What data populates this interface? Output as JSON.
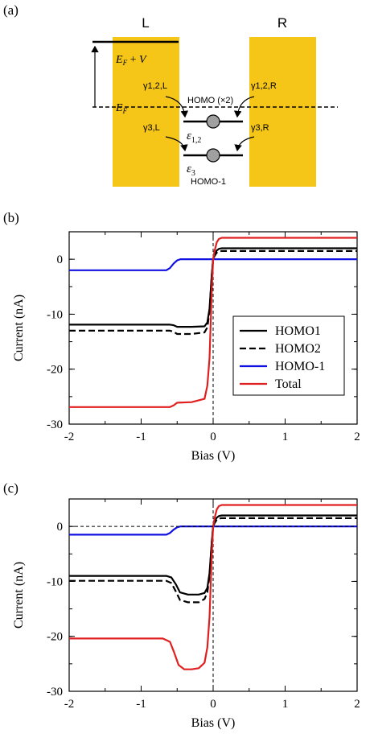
{
  "panel_a": {
    "label": "(a)",
    "left_label": "L",
    "right_label": "R",
    "ef_v": "E_F + V",
    "ef": "E_F",
    "gamma12_l": "γ1,2,L",
    "gamma12_r": "γ1,2,R",
    "gamma3_l": "γ3,L",
    "gamma3_r": "γ3,R",
    "homo_label": "HOMO (×2)",
    "eps12": "ε_{1,2}",
    "eps3": "ε_3",
    "homo_minus_1": "HOMO-1",
    "colors": {
      "electrode": "#F5C518",
      "level": "#000000",
      "dot": "#A0A0A0"
    }
  },
  "chart_data": [
    {
      "panel": "(b)",
      "type": "line",
      "xlabel": "Bias (V)",
      "ylabel": "Current (nA)",
      "xlim": [
        -2,
        2
      ],
      "ylim": [
        -30,
        5
      ],
      "xticks": [
        -2,
        -1,
        0,
        1,
        2
      ],
      "yticks": [
        0,
        -10,
        -20,
        -30
      ],
      "legend": "center-right",
      "series": [
        {
          "name": "HOMO1",
          "color": "#000000",
          "dash": "solid",
          "x": [
            -2,
            -0.6,
            -0.55,
            -0.5,
            -0.3,
            -0.12,
            -0.08,
            -0.05,
            -0.02,
            0,
            0.02,
            0.05,
            0.08,
            0.12,
            2
          ],
          "y": [
            -11.9,
            -11.9,
            -12.0,
            -12.3,
            -12.3,
            -12.2,
            -11.5,
            -9.0,
            -3.0,
            0,
            0.8,
            1.6,
            1.9,
            2.0,
            2.0
          ]
        },
        {
          "name": "HOMO2",
          "color": "#000000",
          "dash": "dashed",
          "x": [
            -2,
            -0.6,
            -0.55,
            -0.5,
            -0.3,
            -0.12,
            -0.08,
            -0.05,
            -0.02,
            0,
            0.02,
            0.05,
            0.08,
            0.12,
            2
          ],
          "y": [
            -13.0,
            -13.0,
            -13.2,
            -13.6,
            -13.6,
            -13.3,
            -12.4,
            -9.5,
            -3.1,
            0,
            0.6,
            1.2,
            1.45,
            1.5,
            1.5
          ]
        },
        {
          "name": "HOMO-1",
          "color": "#1010E0",
          "dash": "solid",
          "x": [
            -2,
            -0.65,
            -0.6,
            -0.55,
            -0.5,
            -0.45,
            2
          ],
          "y": [
            -2.0,
            -2.0,
            -1.6,
            -0.8,
            -0.2,
            0,
            0
          ]
        },
        {
          "name": "Total",
          "color": "#E02020",
          "dash": "solid",
          "x": [
            -2,
            -0.6,
            -0.55,
            -0.5,
            -0.3,
            -0.12,
            -0.08,
            -0.05,
            -0.02,
            0,
            0.02,
            0.05,
            0.08,
            0.12,
            2
          ],
          "y": [
            -26.9,
            -26.9,
            -26.6,
            -26.1,
            -26.0,
            -25.4,
            -23.0,
            -18.0,
            -6.0,
            0,
            1.5,
            3.1,
            3.7,
            3.9,
            3.9
          ]
        }
      ]
    },
    {
      "panel": "(c)",
      "type": "line",
      "xlabel": "Bias (V)",
      "ylabel": "Current (nA)",
      "xlim": [
        -2,
        2
      ],
      "ylim": [
        -30,
        5
      ],
      "xticks": [
        -2,
        -1,
        0,
        1,
        2
      ],
      "yticks": [
        0,
        -10,
        -20,
        -30
      ],
      "series": [
        {
          "name": "HOMO1",
          "color": "#000000",
          "dash": "solid",
          "x": [
            -2,
            -0.65,
            -0.58,
            -0.52,
            -0.46,
            -0.35,
            -0.2,
            -0.12,
            -0.08,
            -0.05,
            -0.02,
            0,
            0.02,
            0.05,
            0.08,
            0.12,
            2
          ],
          "y": [
            -9.0,
            -9.0,
            -9.3,
            -10.5,
            -12.0,
            -12.4,
            -12.4,
            -12.1,
            -11.2,
            -8.5,
            -3.0,
            0,
            0.8,
            1.6,
            1.9,
            2.0,
            2.0
          ]
        },
        {
          "name": "HOMO2",
          "color": "#000000",
          "dash": "dashed",
          "x": [
            -2,
            -0.65,
            -0.58,
            -0.52,
            -0.46,
            -0.35,
            -0.2,
            -0.12,
            -0.08,
            -0.05,
            -0.02,
            0,
            0.02,
            0.05,
            0.08,
            0.12,
            2
          ],
          "y": [
            -9.9,
            -9.9,
            -10.3,
            -11.8,
            -13.4,
            -13.8,
            -13.8,
            -13.2,
            -12.0,
            -9.0,
            -3.0,
            0,
            0.6,
            1.2,
            1.45,
            1.5,
            1.5
          ]
        },
        {
          "name": "HOMO-1",
          "color": "#1010E0",
          "dash": "solid",
          "x": [
            -2,
            -0.65,
            -0.6,
            -0.55,
            -0.5,
            -0.45,
            2
          ],
          "y": [
            -1.5,
            -1.5,
            -1.2,
            -0.6,
            -0.15,
            0,
            0
          ]
        },
        {
          "name": "Total",
          "color": "#E02020",
          "dash": "solid",
          "x": [
            -2,
            -0.7,
            -0.6,
            -0.54,
            -0.48,
            -0.4,
            -0.3,
            -0.2,
            -0.12,
            -0.08,
            -0.05,
            -0.02,
            0,
            0.02,
            0.05,
            0.08,
            0.12,
            2
          ],
          "y": [
            -20.4,
            -20.4,
            -21.0,
            -23.0,
            -25.2,
            -26.0,
            -26.0,
            -25.8,
            -24.8,
            -22.0,
            -16.5,
            -5.5,
            0,
            1.5,
            3.1,
            3.7,
            3.9,
            3.9
          ]
        },
        {
          "name": "",
          "color": "#000000",
          "dash": "dashed",
          "x": [
            -2,
            2
          ],
          "y": [
            0,
            0
          ]
        }
      ]
    }
  ]
}
